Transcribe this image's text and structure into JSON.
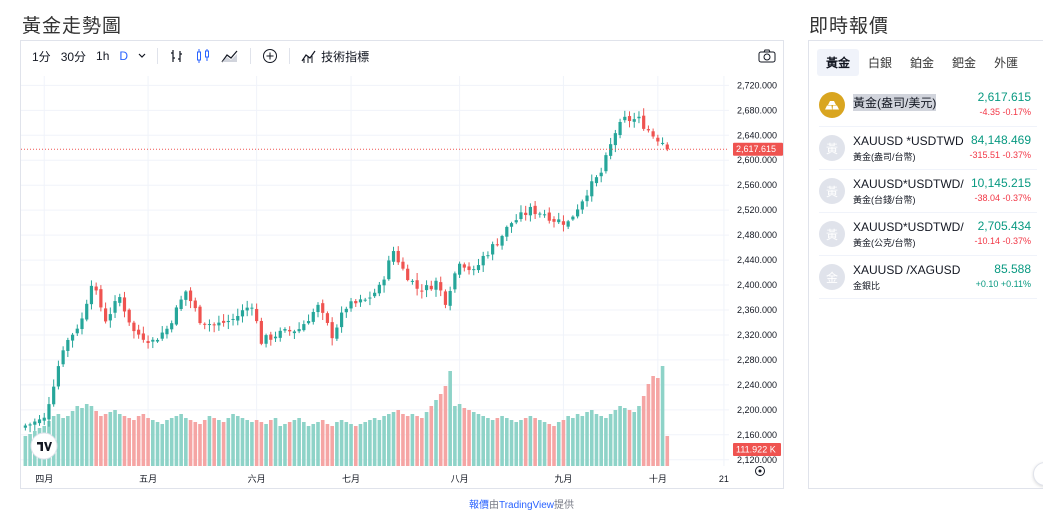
{
  "left_title": "黃金走勢圖",
  "right_title": "即時報價",
  "toolbar": {
    "intervals": [
      "1分",
      "30分",
      "1h",
      "D"
    ],
    "active_interval": "D",
    "indicators_label": "技術指標"
  },
  "credit": {
    "prefix": "報價",
    "mid": "由",
    "brand": "TradingView",
    "suffix": "提供"
  },
  "chart_data": {
    "type": "candlestick",
    "ylim": [
      2110,
      2735
    ],
    "yticks": [
      2120,
      2160,
      2200,
      2240,
      2280,
      2320,
      2360,
      2400,
      2440,
      2480,
      2520,
      2560,
      2600,
      2640,
      2680,
      2720
    ],
    "ytick_labels": [
      "2,120.000",
      "2,160.000",
      "2,200.000",
      "2,240.000",
      "2,280.000",
      "2,320.000",
      "2,360.000",
      "2,400.000",
      "2,440.000",
      "2,480.000",
      "2,520.000",
      "2,560.000",
      "2,600.000",
      "2,640.000",
      "2,680.000",
      "2,720.000"
    ],
    "xtick_labels": [
      {
        "label": "四月",
        "index": 4
      },
      {
        "label": "五月",
        "index": 26
      },
      {
        "label": "六月",
        "index": 49
      },
      {
        "label": "七月",
        "index": 69
      },
      {
        "label": "八月",
        "index": 92
      },
      {
        "label": "九月",
        "index": 114
      },
      {
        "label": "十月",
        "index": 134
      },
      {
        "label": "21",
        "index": 148
      }
    ],
    "last_price": 2617.615,
    "last_price_label": "2,617.615",
    "volume_label": "111.922 K",
    "anchors": [
      [
        0,
        2175
      ],
      [
        4,
        2185
      ],
      [
        8,
        2300
      ],
      [
        12,
        2345
      ],
      [
        14,
        2405
      ],
      [
        17,
        2345
      ],
      [
        20,
        2380
      ],
      [
        23,
        2325
      ],
      [
        27,
        2310
      ],
      [
        30,
        2330
      ],
      [
        34,
        2390
      ],
      [
        37,
        2345
      ],
      [
        40,
        2335
      ],
      [
        44,
        2345
      ],
      [
        48,
        2370
      ],
      [
        50,
        2310
      ],
      [
        53,
        2320
      ],
      [
        58,
        2330
      ],
      [
        62,
        2365
      ],
      [
        65,
        2320
      ],
      [
        68,
        2365
      ],
      [
        72,
        2375
      ],
      [
        75,
        2395
      ],
      [
        78,
        2455
      ],
      [
        80,
        2425
      ],
      [
        83,
        2395
      ],
      [
        85,
        2395
      ],
      [
        87,
        2405
      ],
      [
        89,
        2375
      ],
      [
        92,
        2440
      ],
      [
        95,
        2420
      ],
      [
        97,
        2445
      ],
      [
        100,
        2470
      ],
      [
        103,
        2500
      ],
      [
        107,
        2520
      ],
      [
        110,
        2515
      ],
      [
        112,
        2505
      ],
      [
        115,
        2500
      ],
      [
        119,
        2550
      ],
      [
        122,
        2580
      ],
      [
        125,
        2645
      ],
      [
        127,
        2665
      ],
      [
        130,
        2665
      ],
      [
        133,
        2640
      ],
      [
        135,
        2630
      ],
      [
        137,
        2617.6
      ]
    ],
    "volumes": [
      0.3,
      0.32,
      0.35,
      0.38,
      0.4,
      0.45,
      0.5,
      0.52,
      0.48,
      0.5,
      0.55,
      0.6,
      0.58,
      0.62,
      0.6,
      0.55,
      0.5,
      0.52,
      0.54,
      0.56,
      0.52,
      0.5,
      0.48,
      0.46,
      0.5,
      0.52,
      0.48,
      0.46,
      0.44,
      0.42,
      0.46,
      0.48,
      0.5,
      0.52,
      0.48,
      0.46,
      0.44,
      0.42,
      0.46,
      0.5,
      0.48,
      0.46,
      0.44,
      0.48,
      0.52,
      0.5,
      0.48,
      0.46,
      0.44,
      0.46,
      0.44,
      0.42,
      0.46,
      0.48,
      0.4,
      0.42,
      0.44,
      0.46,
      0.48,
      0.44,
      0.4,
      0.42,
      0.44,
      0.46,
      0.42,
      0.4,
      0.44,
      0.46,
      0.44,
      0.42,
      0.4,
      0.42,
      0.44,
      0.46,
      0.48,
      0.46,
      0.5,
      0.52,
      0.54,
      0.56,
      0.52,
      0.5,
      0.52,
      0.5,
      0.48,
      0.54,
      0.6,
      0.66,
      0.72,
      0.8,
      0.95,
      0.6,
      0.62,
      0.58,
      0.56,
      0.54,
      0.52,
      0.5,
      0.48,
      0.46,
      0.48,
      0.5,
      0.48,
      0.46,
      0.44,
      0.46,
      0.48,
      0.5,
      0.48,
      0.46,
      0.44,
      0.42,
      0.4,
      0.44,
      0.46,
      0.5,
      0.48,
      0.52,
      0.5,
      0.54,
      0.56,
      0.52,
      0.5,
      0.48,
      0.52,
      0.56,
      0.6,
      0.58,
      0.56,
      0.54,
      0.6,
      0.7,
      0.82,
      0.9,
      0.88,
      1.0,
      0.3
    ]
  },
  "quotes": {
    "tabs": [
      "黃金",
      "白銀",
      "鉑金",
      "鈀金",
      "外匯"
    ],
    "active_tab": "黃金",
    "rows": [
      {
        "icon": "",
        "symbol": "黃金(盎司/美元)",
        "sub": "",
        "price": "2,617.615",
        "change": "-4.35 -0.17%",
        "dir": "down"
      },
      {
        "icon": "黃",
        "symbol": "XAUUSD *USDTWD",
        "sub": "黃金(盎司/台幣)",
        "price": "84,148.469",
        "change": "-315.51 -0.37%",
        "dir": "down"
      },
      {
        "icon": "黃",
        "symbol": "XAUUSD*USDTWD/",
        "sub": "黃金(台錢/台幣)",
        "price": "10,145.215",
        "change": "-38.04 -0.37%",
        "dir": "down"
      },
      {
        "icon": "黃",
        "symbol": "XAUUSD*USDTWD/",
        "sub": "黃金(公克/台幣)",
        "price": "2,705.434",
        "change": "-10.14 -0.37%",
        "dir": "down"
      },
      {
        "icon": "金",
        "symbol": "XAUUSD /XAGUSD",
        "sub": "金銀比",
        "price": "85.588",
        "change": "+0.10 +0.11%",
        "dir": "up"
      }
    ]
  },
  "colors": {
    "up": "#26a69a",
    "down": "#ef5350",
    "up_vol": "#8ed3c8",
    "down_vol": "#f5a5a4",
    "grid": "#f0f3fa",
    "price_line": "#ef5350"
  }
}
